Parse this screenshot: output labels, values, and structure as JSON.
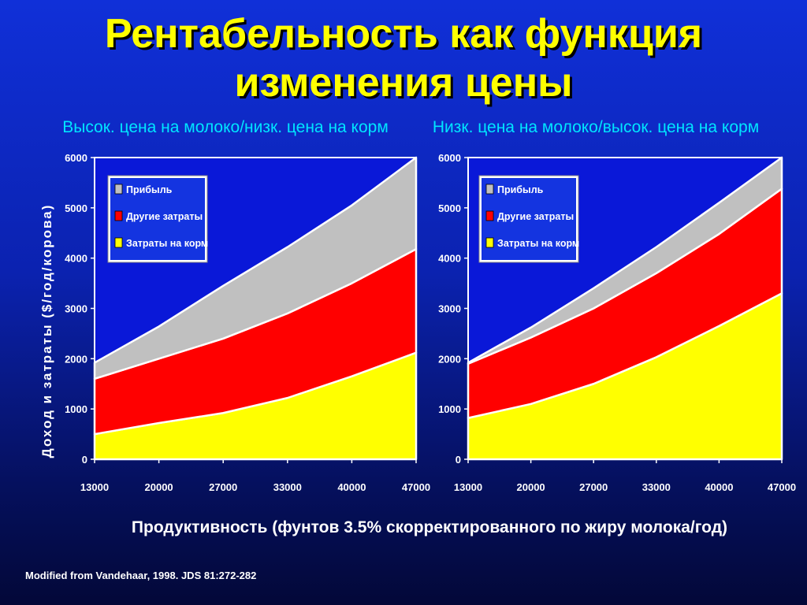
{
  "title": "Рентабельность как функция изменения цены",
  "subtitles": {
    "left": "Высок. цена на молоко/низк. цена на корм",
    "right": "Низк. цена на молоко/высок. цена на корм"
  },
  "ylabel": "Доход и затраты ($/год/корова)",
  "xlabel": "Продуктивность (фунтов  3.5% скорректированного по жиру молока/год)",
  "citation": "Modified from Vandehaar, 1998. JDS 81:272-282",
  "colors": {
    "profit": "#c0c0c0",
    "other": "#ff0000",
    "feed": "#ffff00",
    "plot_bg": "#0a18d8"
  },
  "chart_data": [
    {
      "type": "area",
      "stacked": true,
      "categories": [
        "13000",
        "20000",
        "27000",
        "33000",
        "40000",
        "47000"
      ],
      "ylim": [
        0,
        6000
      ],
      "yticks": [
        "0",
        "1000",
        "2000",
        "3000",
        "4000",
        "5000",
        "6000"
      ],
      "legend_placement": "top-left",
      "series": [
        {
          "name": "Затраты на корм",
          "color": "#ffff00",
          "values": [
            500,
            720,
            920,
            1220,
            1650,
            2120
          ]
        },
        {
          "name": "Другие затраты",
          "color": "#ff0000",
          "values": [
            1100,
            1280,
            1480,
            1680,
            1850,
            2060
          ]
        },
        {
          "name": "Прибыль",
          "color": "#c0c0c0",
          "values": [
            320,
            640,
            1050,
            1320,
            1550,
            1820
          ]
        }
      ],
      "legend": [
        "Прибыль",
        "Другие затраты",
        "Затраты на корм"
      ]
    },
    {
      "type": "area",
      "stacked": true,
      "categories": [
        "13000",
        "20000",
        "27000",
        "33000",
        "40000",
        "47000"
      ],
      "ylim": [
        0,
        6000
      ],
      "yticks": [
        "0",
        "1000",
        "2000",
        "3000",
        "4000",
        "5000",
        "6000"
      ],
      "legend_placement": "top-left",
      "series": [
        {
          "name": "Затраты на корм",
          "color": "#ffff00",
          "values": [
            820,
            1100,
            1500,
            2030,
            2650,
            3300
          ]
        },
        {
          "name": "Другие затраты",
          "color": "#ff0000",
          "values": [
            1080,
            1320,
            1500,
            1670,
            1830,
            2080
          ]
        },
        {
          "name": "Прибыль",
          "color": "#c0c0c0",
          "values": [
            20,
            200,
            400,
            520,
            620,
            620
          ]
        }
      ],
      "legend": [
        "Прибыль",
        "Другие затраты",
        "Затраты на корм"
      ]
    }
  ]
}
